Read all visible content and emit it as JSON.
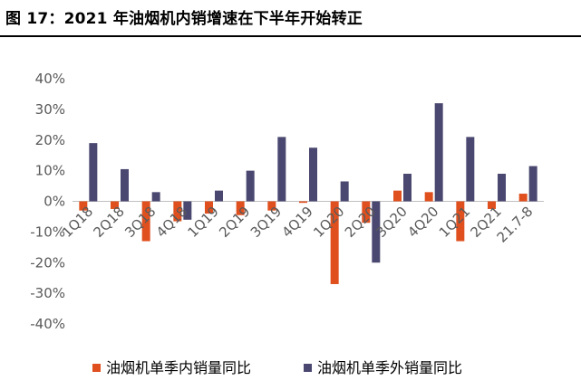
{
  "title": "图 17：2021 年油烟机内销增速在下半年开始转正",
  "colors": {
    "domestic": "#E0501F",
    "export": "#4A4870",
    "axis": "#BFBFBF",
    "text": "#595959"
  },
  "chart_data": {
    "type": "bar",
    "categories": [
      "1Q18",
      "2Q18",
      "3Q18",
      "4Q18",
      "1Q19",
      "2Q19",
      "3Q19",
      "4Q19",
      "1Q20",
      "2Q20",
      "3Q20",
      "4Q20",
      "1Q21",
      "2Q21",
      "21.7-8"
    ],
    "series": [
      {
        "name": "油烟机单季内销量同比",
        "color": "#E0501F",
        "values": [
          -3,
          -2.5,
          -13,
          -6.5,
          -4,
          -4.5,
          -3,
          -0.5,
          -27,
          -7,
          3.5,
          3,
          -13,
          -2.5,
          2.5
        ]
      },
      {
        "name": "油烟机单季外销量同比",
        "color": "#4A4870",
        "values": [
          19,
          10.5,
          3,
          -6,
          3.5,
          10,
          21,
          17.5,
          6.5,
          -20,
          9,
          32,
          21,
          9,
          11.5
        ]
      }
    ],
    "y_ticks": [
      "40%",
      "30%",
      "20%",
      "10%",
      "0%",
      "-10%",
      "-20%",
      "-30%",
      "-40%"
    ],
    "ylim": [
      -40,
      40
    ],
    "ylabel": "",
    "xlabel": "",
    "grid": false,
    "legend_position": "bottom"
  }
}
